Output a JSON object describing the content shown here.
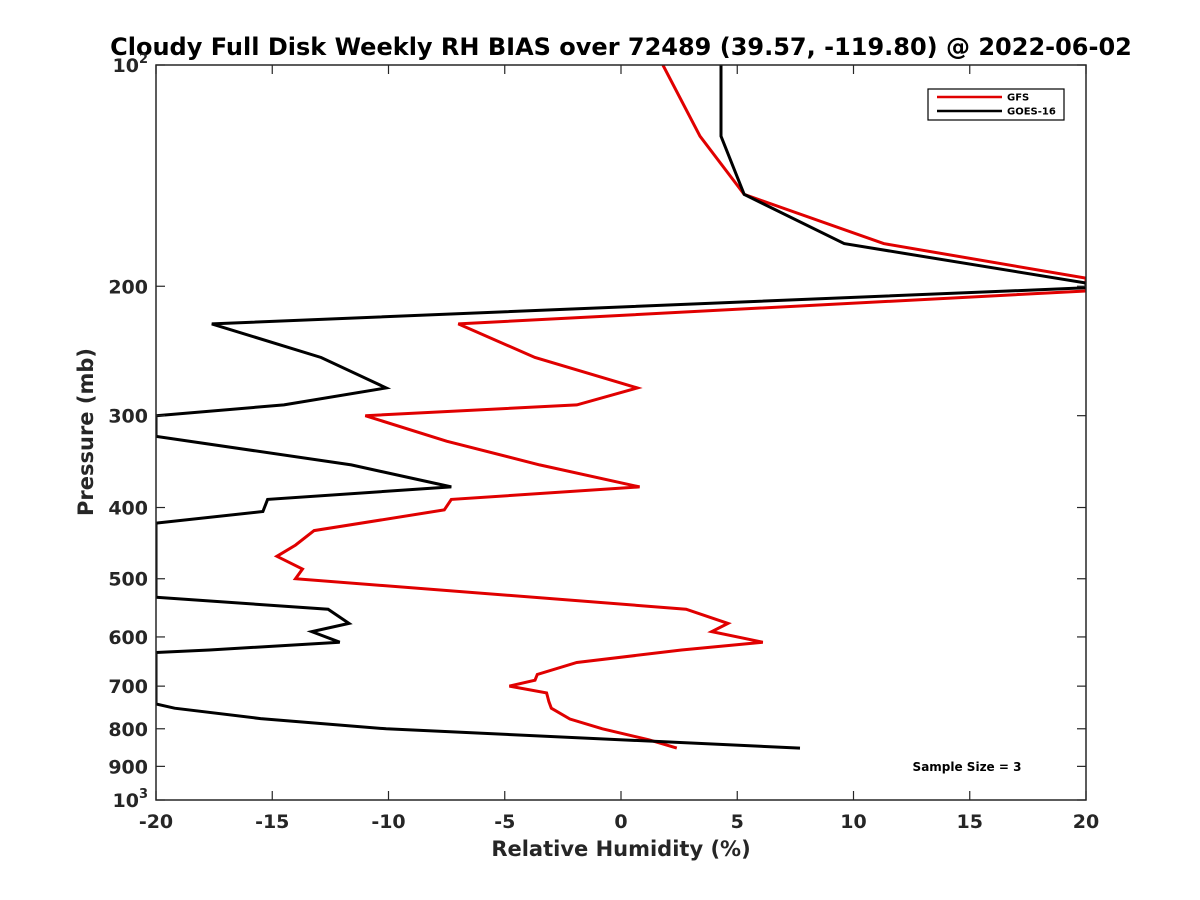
{
  "chart_data": {
    "type": "line",
    "title": "Cloudy Full Disk Weekly RH BIAS over 72489 (39.57, -119.80) @ 2022-06-02",
    "xlabel": "Relative Humidity (%)",
    "ylabel": "Pressure (mb)",
    "xlim": [
      -20,
      20
    ],
    "ylim": [
      100,
      1000
    ],
    "y_scale": "log",
    "y_reversed": true,
    "grid": false,
    "legend_position": "top-right",
    "annotation": "Sample Size = 3",
    "x_ticks": [
      -20,
      -15,
      -10,
      -5,
      0,
      5,
      10,
      15,
      20
    ],
    "x_tick_labels": [
      "-20",
      "-15",
      "-10",
      "-5",
      "0",
      "5",
      "10",
      "15",
      "20"
    ],
    "y_ticks": [
      100,
      200,
      300,
      400,
      500,
      600,
      700,
      800,
      900,
      1000
    ],
    "y_tick_labels": [
      {
        "base": "10",
        "exp": "2"
      },
      {
        "base": "200",
        "exp": ""
      },
      {
        "base": "300",
        "exp": ""
      },
      {
        "base": "400",
        "exp": ""
      },
      {
        "base": "500",
        "exp": ""
      },
      {
        "base": "600",
        "exp": ""
      },
      {
        "base": "700",
        "exp": ""
      },
      {
        "base": "800",
        "exp": ""
      },
      {
        "base": "900",
        "exp": ""
      },
      {
        "base": "10",
        "exp": "3"
      }
    ],
    "series": [
      {
        "name": "GFS",
        "color": "#e00000",
        "points": [
          [
            1.8,
            100
          ],
          [
            3.4,
            125
          ],
          [
            5.3,
            150
          ],
          [
            11.3,
            175
          ],
          [
            20,
            195
          ],
          [
            20,
            203
          ],
          [
            -7.0,
            225
          ],
          [
            -3.7,
            250
          ],
          [
            0.7,
            275
          ],
          [
            -1.9,
            290
          ],
          [
            -11.0,
            300
          ],
          [
            -7.5,
            325
          ],
          [
            -3.5,
            350
          ],
          [
            0.8,
            375
          ],
          [
            -7.3,
            390
          ],
          [
            -7.6,
            403
          ],
          [
            -13.2,
            430
          ],
          [
            -14.0,
            450
          ],
          [
            -14.8,
            466
          ],
          [
            -13.7,
            485
          ],
          [
            -14.0,
            500
          ],
          [
            2.8,
            550
          ],
          [
            4.6,
            575
          ],
          [
            3.9,
            590
          ],
          [
            6.1,
            610
          ],
          [
            2.6,
            625
          ],
          [
            -1.9,
            650
          ],
          [
            -3.6,
            675
          ],
          [
            -3.7,
            687
          ],
          [
            -4.8,
            700
          ],
          [
            -3.2,
            715
          ],
          [
            -3.1,
            735
          ],
          [
            -3.0,
            750
          ],
          [
            -2.2,
            776
          ],
          [
            -0.8,
            800
          ],
          [
            1.2,
            828
          ],
          [
            2.4,
            850
          ]
        ]
      },
      {
        "name": "GOES-16",
        "color": "#000000",
        "points": [
          [
            4.3,
            100
          ],
          [
            4.3,
            125
          ],
          [
            5.3,
            150
          ],
          [
            9.6,
            175
          ],
          [
            20,
            198
          ],
          [
            20,
            201
          ],
          [
            -17.6,
            225
          ],
          [
            -12.9,
            250
          ],
          [
            -10.1,
            275
          ],
          [
            -14.5,
            290
          ],
          [
            -20,
            300
          ],
          [
            -20,
            320
          ],
          [
            -11.6,
            350
          ],
          [
            -7.3,
            375
          ],
          [
            -15.2,
            390
          ],
          [
            -15.4,
            405
          ],
          [
            -20,
            420
          ],
          [
            -20,
            530
          ],
          [
            -12.6,
            550
          ],
          [
            -11.7,
            575
          ],
          [
            -13.3,
            590
          ],
          [
            -12.1,
            610
          ],
          [
            -17.7,
            625
          ],
          [
            -20,
            630
          ],
          [
            -20,
            740
          ],
          [
            -19.2,
            750
          ],
          [
            -15.5,
            775
          ],
          [
            -10.1,
            800
          ],
          [
            7.7,
            850
          ]
        ]
      }
    ]
  }
}
